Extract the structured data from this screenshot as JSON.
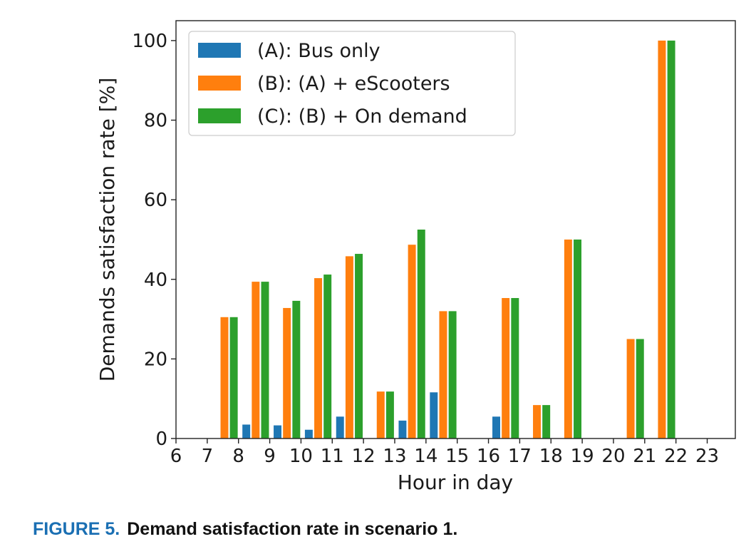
{
  "chart_data": {
    "type": "bar",
    "xlabel": "Hour in day",
    "ylabel": "Demands satisfaction rate [%]",
    "ylim": [
      0,
      105
    ],
    "yticks": [
      0,
      20,
      40,
      60,
      80,
      100
    ],
    "xticks": [
      6,
      7,
      8,
      9,
      10,
      11,
      12,
      13,
      14,
      15,
      16,
      17,
      18,
      19,
      20,
      21,
      22,
      23
    ],
    "xlim": [
      6,
      23.9
    ],
    "grid": false,
    "legend_position": "top-left",
    "categories": [
      7,
      8,
      9,
      10,
      11,
      12,
      13,
      14,
      16,
      17,
      18,
      20,
      21
    ],
    "series": [
      {
        "name": "(A): Bus only",
        "color": "#1f77b4",
        "values": [
          0,
          3.5,
          3.3,
          2.2,
          5.5,
          0,
          4.5,
          11.6,
          5.5,
          0,
          0,
          0,
          0
        ]
      },
      {
        "name": "(B): (A) + eScooters",
        "color": "#ff7f0e",
        "values": [
          30.5,
          39.4,
          32.8,
          40.3,
          45.8,
          11.8,
          48.7,
          32.0,
          35.3,
          8.4,
          50.0,
          25.0,
          100.0
        ]
      },
      {
        "name": "(C): (B) + On demand",
        "color": "#2ca02c",
        "values": [
          30.5,
          39.4,
          34.6,
          41.2,
          46.4,
          11.8,
          52.5,
          32.0,
          35.3,
          8.4,
          50.0,
          25.0,
          100.0
        ]
      }
    ]
  },
  "caption": {
    "label": "FIGURE 5.",
    "text": "Demand satisfaction rate in scenario 1."
  }
}
